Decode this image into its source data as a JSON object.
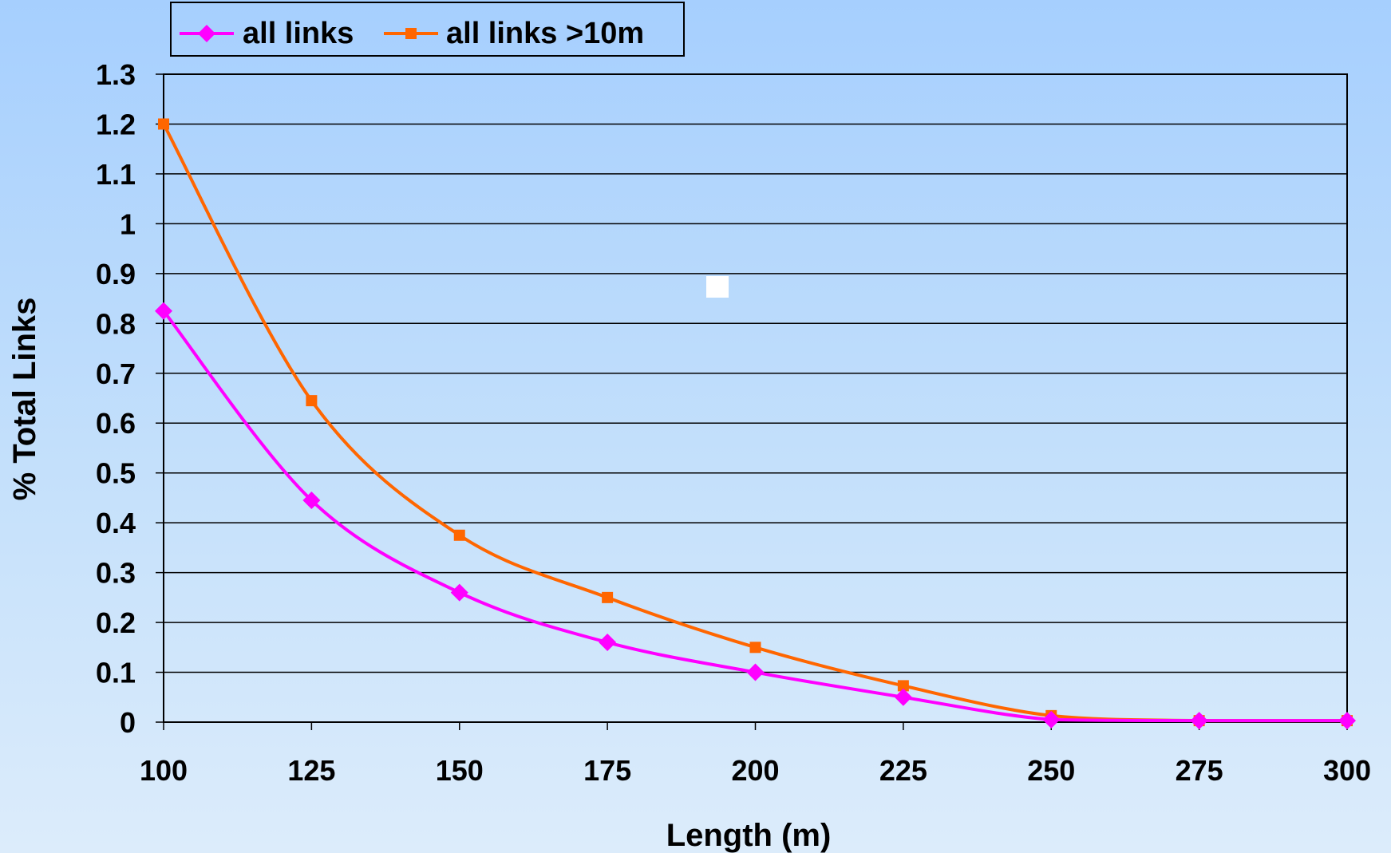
{
  "chart_data": {
    "type": "line",
    "title": "",
    "xlabel": "Length (m)",
    "ylabel": "% Total Links",
    "x": [
      100,
      125,
      150,
      175,
      200,
      225,
      250,
      275,
      300
    ],
    "x_tick_labels": [
      "100",
      "125",
      "150",
      "175",
      "200",
      "225",
      "250",
      "275",
      "300"
    ],
    "y_tick_labels": [
      "0",
      "0.1",
      "0.2",
      "0.3",
      "0.4",
      "0.5",
      "0.6",
      "0.7",
      "0.8",
      "0.9",
      "1",
      "1.1",
      "1.2",
      "1.3"
    ],
    "xlim": [
      100,
      300
    ],
    "ylim": [
      0,
      1.3
    ],
    "grid": true,
    "legend_position": "top-left, above plot",
    "series": [
      {
        "name": "all links",
        "color": "#ff00ff",
        "marker": "diamond",
        "values": [
          0.825,
          0.445,
          0.26,
          0.16,
          0.1,
          0.05,
          0.005,
          0.003,
          0.003
        ]
      },
      {
        "name": "all links >10m",
        "color": "#ff6600",
        "marker": "square",
        "values": [
          1.2,
          0.645,
          0.375,
          0.25,
          0.15,
          0.073,
          0.013,
          0.003,
          0.003
        ]
      }
    ]
  }
}
